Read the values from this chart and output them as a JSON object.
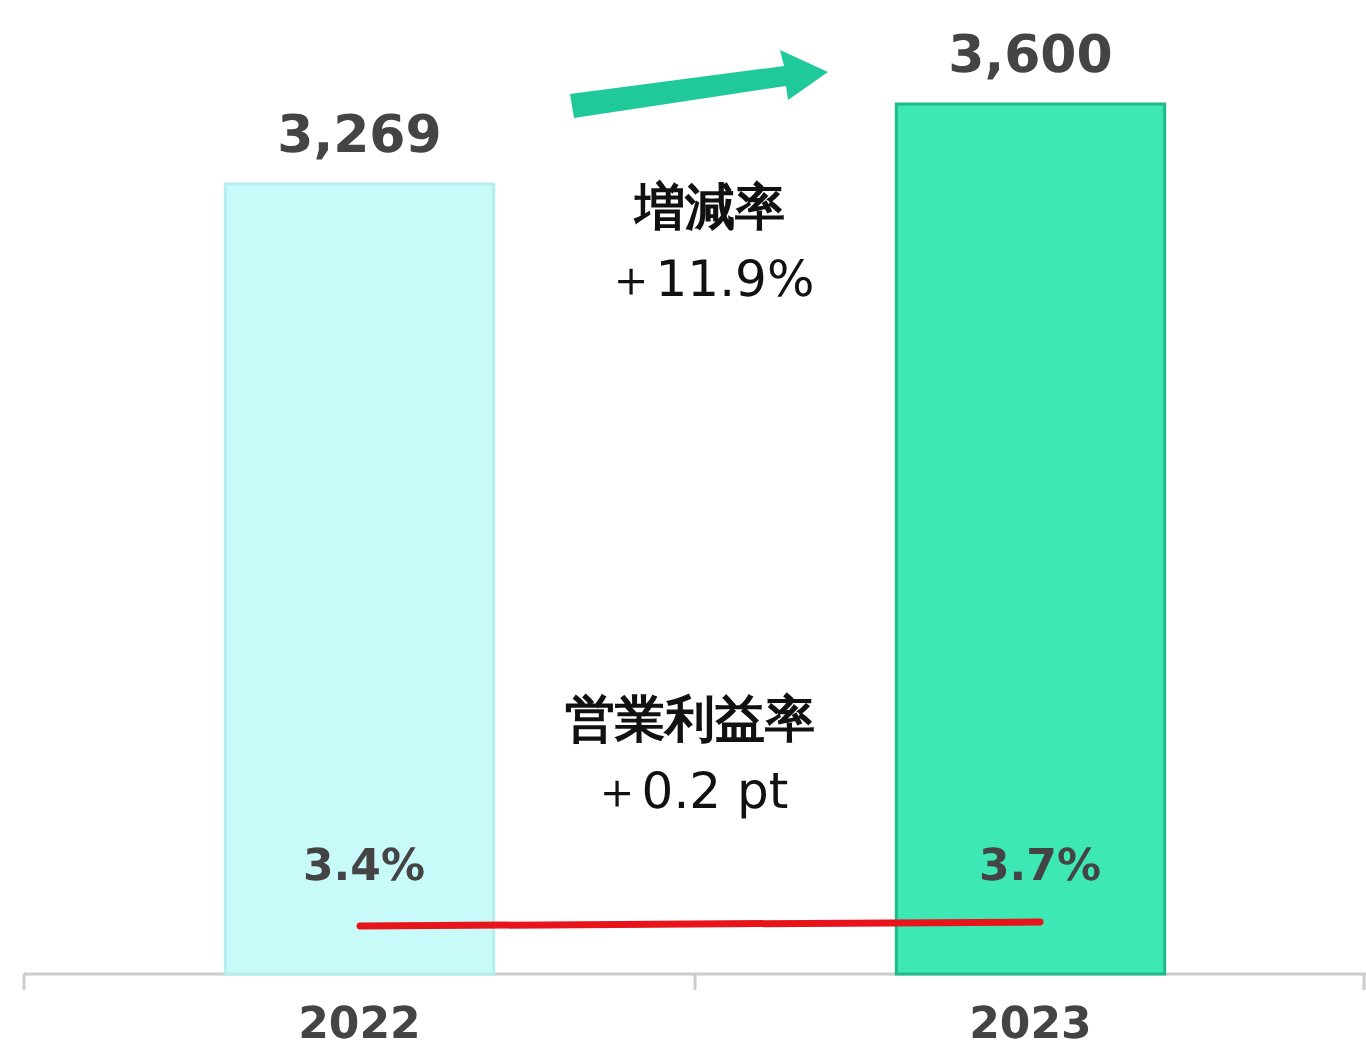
{
  "chart_data": {
    "type": "bar",
    "categories": [
      "2022",
      "2023"
    ],
    "ylim": [
      0,
      3600
    ],
    "tick_labels": "x",
    "annotations": [
      "増減率",
      "＋11.9%",
      "営業利益率",
      "＋0.2 pt",
      "3.4%",
      "3.7%"
    ],
    "series": [
      {
        "colors": [
          "#c8fafa",
          "#3de8b4"
        ],
        "values": [
          3269,
          3600
        ],
        "value_labels": [
          "3,269",
          "3,600"
        ]
      }
    ]
  }
}
